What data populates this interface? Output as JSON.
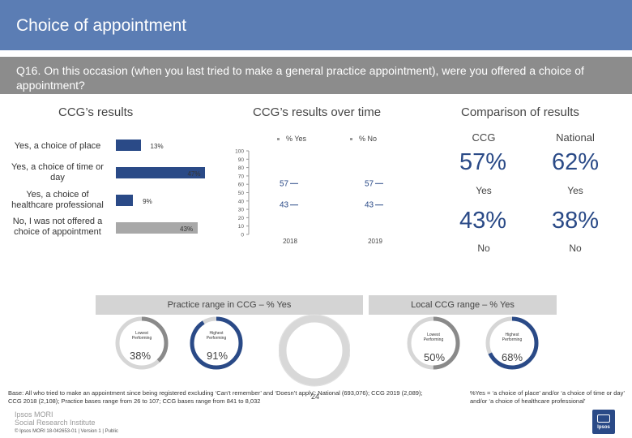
{
  "header": {
    "title": "Choice of appointment"
  },
  "question": "Q16. On this occasion (when you last tried to make a general practice appointment), were you offered a choice of appointment?",
  "sections": {
    "ccg_results": "CCG’s results",
    "over_time": "CCG’s results over time",
    "comparison": "Comparison of results"
  },
  "chart_data": [
    {
      "type": "bar",
      "orientation": "horizontal",
      "title": "CCG’s results",
      "categories": [
        "Yes, a choice of place",
        "Yes, a choice of time or day",
        "Yes, a choice of healthcare professional",
        "No, I was not offered a choice of appointment"
      ],
      "values": [
        13,
        47,
        9,
        43
      ],
      "value_labels": [
        "13%",
        "47%",
        "9%",
        "43%"
      ],
      "colors": [
        "#2a4a87",
        "#2a4a87",
        "#2a4a87",
        "#a8a8a8"
      ],
      "xlim": [
        0,
        100
      ]
    },
    {
      "type": "line",
      "title": "CCG’s results over time",
      "x": [
        "2018",
        "2019"
      ],
      "series": [
        {
          "name": "% Yes",
          "values": [
            57,
            57
          ],
          "labels": [
            "57",
            "57"
          ]
        },
        {
          "name": "% No",
          "values": [
            43,
            43
          ],
          "labels": [
            "43",
            "43"
          ]
        }
      ],
      "ylim": [
        0,
        100
      ],
      "yticks": [
        "0",
        "10",
        "20",
        "30",
        "40",
        "50",
        "60",
        "70",
        "80",
        "90",
        "100"
      ]
    }
  ],
  "comparison": {
    "ccg_label": "CCG",
    "national_label": "National",
    "ccg_yes": "57%",
    "national_yes": "62%",
    "yes_label": "Yes",
    "ccg_no": "43%",
    "national_no": "38%",
    "no_label": "No"
  },
  "practice_range": {
    "title": "Practice range in CCG – % Yes",
    "lowest_caption": "Lowest Performing",
    "highest_caption": "Highest Performing",
    "lowest_value": "38%",
    "highest_value": "91%",
    "lowest_pct": 38,
    "highest_pct": 91
  },
  "local_range": {
    "title": "Local CCG range – % Yes",
    "lowest_caption": "Lowest Performing",
    "highest_caption": "Highest Performing",
    "lowest_value": "50%",
    "highest_value": "68%",
    "lowest_pct": 50,
    "highest_pct": 68
  },
  "footer": {
    "base_note": "Base: All who tried to make an appointment since being registered excluding ‘Can’t remember’ and ‘Doesn’t apply’: National (693,076); CCG 2019 (2,089); CCG 2018 (2,108); Practice bases range from 26 to 107; CCG bases range from 841 to 8,032",
    "yes_note": "%Yes = ‘a choice of place’ and/or ‘a choice of time or day’ and/or ‘a choice of healthcare professional’",
    "page_number": "24",
    "logo_line1": "Ipsos MORI",
    "logo_line2": "Social Research Institute",
    "meta": "© Ipsos MORI    18-042653-01 | Version 1 | Public",
    "corner_brand": "Ipsos"
  },
  "colors": {
    "title_bar": "#5b7db4",
    "question_band": "#8c8c8c",
    "accent": "#2a4a87",
    "grey": "#a8a8a8"
  }
}
